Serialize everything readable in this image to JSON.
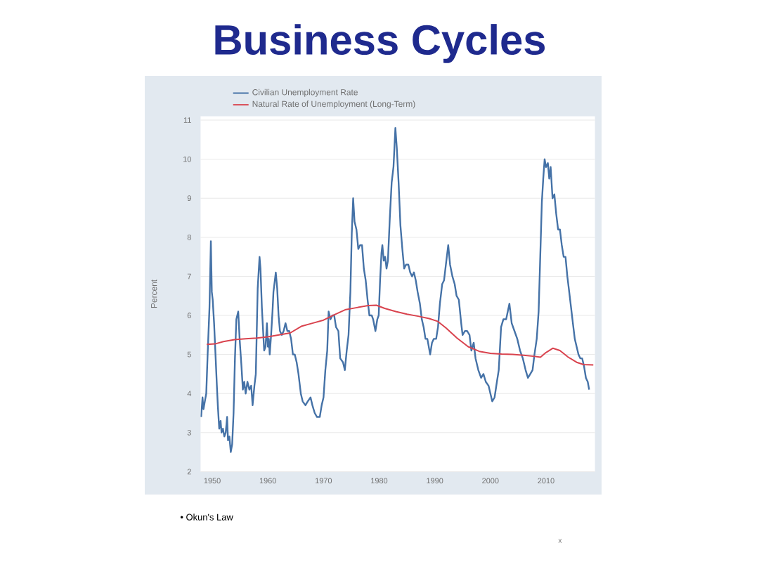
{
  "chart_data": {
    "type": "line",
    "title": "Business Cycles",
    "ylabel": "Percent",
    "annotations": [
      "• Okun's Law",
      "x"
    ],
    "xlim": [
      1947.9,
      2018.8
    ],
    "xticks": [
      1950,
      1960,
      1970,
      1980,
      1990,
      2000,
      2010
    ],
    "ylim": [
      2,
      11.1
    ],
    "yticks": [
      2,
      3,
      4,
      5,
      6,
      7,
      8,
      9,
      10,
      11
    ],
    "grid": "y",
    "legend": "top left",
    "series": [
      {
        "name": "Civilian Unemployment Rate",
        "color": "#4572a7",
        "x": [
          1948.0,
          1948.25,
          1948.42,
          1948.67,
          1948.92,
          1949.17,
          1949.5,
          1949.75,
          1949.92,
          1950.08,
          1950.33,
          1950.58,
          1950.83,
          1951.0,
          1951.25,
          1951.5,
          1951.67,
          1951.92,
          1952.17,
          1952.42,
          1952.67,
          1952.83,
          1953.08,
          1953.33,
          1953.58,
          1953.83,
          1954.08,
          1954.33,
          1954.67,
          1954.92,
          1955.25,
          1955.5,
          1955.75,
          1956.0,
          1956.33,
          1956.67,
          1957.0,
          1957.25,
          1957.58,
          1957.83,
          1958.17,
          1958.5,
          1958.67,
          1958.92,
          1959.33,
          1959.58,
          1959.83,
          1960.0,
          1960.17,
          1960.33,
          1960.58,
          1960.83,
          1961.0,
          1961.42,
          1961.67,
          1961.92,
          1962.17,
          1962.5,
          1962.83,
          1963.17,
          1963.5,
          1963.83,
          1964.17,
          1964.5,
          1964.83,
          1965.17,
          1965.5,
          1965.92,
          1966.25,
          1966.75,
          1967.17,
          1967.67,
          1968.0,
          1968.42,
          1968.83,
          1969.33,
          1969.67,
          1970.0,
          1970.33,
          1970.67,
          1970.92,
          1971.25,
          1971.58,
          1971.92,
          1972.25,
          1972.67,
          1973.0,
          1973.5,
          1973.83,
          1974.17,
          1974.5,
          1974.83,
          1975.08,
          1975.33,
          1975.58,
          1975.92,
          1976.25,
          1976.58,
          1976.92,
          1977.25,
          1977.58,
          1977.92,
          1978.25,
          1978.67,
          1978.92,
          1979.33,
          1979.67,
          1979.92,
          1980.17,
          1980.42,
          1980.58,
          1980.83,
          1981.08,
          1981.33,
          1981.58,
          1981.92,
          1982.25,
          1982.58,
          1982.92,
          1983.17,
          1983.5,
          1983.83,
          1984.17,
          1984.5,
          1984.83,
          1985.25,
          1985.58,
          1985.92,
          1986.25,
          1986.58,
          1986.92,
          1987.33,
          1987.67,
          1988.0,
          1988.33,
          1988.67,
          1989.17,
          1989.5,
          1989.83,
          1990.25,
          1990.58,
          1990.92,
          1991.33,
          1991.67,
          1992.0,
          1992.42,
          1992.75,
          1993.17,
          1993.58,
          1993.92,
          1994.33,
          1994.75,
          1995.0,
          1995.42,
          1995.83,
          1996.25,
          1996.58,
          1997.0,
          1997.33,
          1997.83,
          1998.33,
          1998.75,
          1999.17,
          1999.67,
          2000.0,
          2000.33,
          2000.75,
          2001.17,
          2001.5,
          2001.92,
          2002.33,
          2002.83,
          2003.42,
          2003.83,
          2004.33,
          2004.83,
          2005.33,
          2005.83,
          2006.33,
          2006.75,
          2007.17,
          2007.58,
          2007.92,
          2008.33,
          2008.67,
          2008.92,
          2009.25,
          2009.5,
          2009.75,
          2010.0,
          2010.33,
          2010.58,
          2010.83,
          2011.17,
          2011.5,
          2011.83,
          2012.17,
          2012.5,
          2012.83,
          2013.17,
          2013.5,
          2013.83,
          2014.17,
          2014.5,
          2014.83,
          2015.17,
          2015.5,
          2015.83,
          2016.17,
          2016.5,
          2016.83,
          2017.17,
          2017.5,
          2017.75
        ],
        "values": [
          3.4,
          3.9,
          3.6,
          3.8,
          4.0,
          5.0,
          6.2,
          7.9,
          6.6,
          6.4,
          5.8,
          5.0,
          4.2,
          3.7,
          3.1,
          3.3,
          3.0,
          3.1,
          2.9,
          3.0,
          3.4,
          2.8,
          2.9,
          2.5,
          2.7,
          3.5,
          4.9,
          5.9,
          6.1,
          5.4,
          4.7,
          4.1,
          4.3,
          4.0,
          4.3,
          4.1,
          4.2,
          3.7,
          4.2,
          4.5,
          6.7,
          7.5,
          7.2,
          6.2,
          5.1,
          5.2,
          5.8,
          5.2,
          5.4,
          5.0,
          5.5,
          6.1,
          6.6,
          7.1,
          6.7,
          6.0,
          5.6,
          5.5,
          5.6,
          5.8,
          5.6,
          5.6,
          5.4,
          5.0,
          5.0,
          4.8,
          4.5,
          4.0,
          3.8,
          3.7,
          3.8,
          3.9,
          3.7,
          3.5,
          3.4,
          3.4,
          3.7,
          3.9,
          4.6,
          5.1,
          6.1,
          5.9,
          6.0,
          6.0,
          5.7,
          5.6,
          4.9,
          4.8,
          4.6,
          5.1,
          5.5,
          6.6,
          8.1,
          9.0,
          8.4,
          8.2,
          7.7,
          7.8,
          7.8,
          7.2,
          6.9,
          6.4,
          6.0,
          6.0,
          5.9,
          5.6,
          5.9,
          6.0,
          6.9,
          7.6,
          7.8,
          7.4,
          7.5,
          7.2,
          7.4,
          8.5,
          9.4,
          9.8,
          10.8,
          10.3,
          9.4,
          8.3,
          7.7,
          7.2,
          7.3,
          7.3,
          7.1,
          7.0,
          7.1,
          6.9,
          6.6,
          6.3,
          5.9,
          5.7,
          5.4,
          5.4,
          5.0,
          5.3,
          5.4,
          5.4,
          5.7,
          6.3,
          6.8,
          6.9,
          7.3,
          7.8,
          7.3,
          7.0,
          6.8,
          6.5,
          6.4,
          5.8,
          5.5,
          5.6,
          5.6,
          5.5,
          5.1,
          5.3,
          4.9,
          4.6,
          4.4,
          4.5,
          4.3,
          4.2,
          4.0,
          3.8,
          3.9,
          4.3,
          4.6,
          5.7,
          5.9,
          5.9,
          6.3,
          5.8,
          5.6,
          5.4,
          5.1,
          4.9,
          4.6,
          4.4,
          4.5,
          4.6,
          5.0,
          5.4,
          6.1,
          7.3,
          8.9,
          9.5,
          10.0,
          9.8,
          9.9,
          9.5,
          9.8,
          9.0,
          9.1,
          8.6,
          8.2,
          8.2,
          7.8,
          7.5,
          7.5,
          7.0,
          6.6,
          6.2,
          5.8,
          5.4,
          5.2,
          5.0,
          4.9,
          4.9,
          4.7,
          4.4,
          4.3,
          4.1
        ]
      },
      {
        "name": "Natural Rate of Unemployment (Long-Term)",
        "color": "#d9434e",
        "x": [
          1949.0,
          1950.5,
          1952.0,
          1954.0,
          1956.0,
          1958.0,
          1960.0,
          1962.0,
          1964.0,
          1966.0,
          1968.0,
          1970.0,
          1972.0,
          1974.0,
          1976.0,
          1978.0,
          1979.5,
          1981.0,
          1983.0,
          1985.0,
          1987.0,
          1989.0,
          1990.5,
          1992.0,
          1994.0,
          1996.0,
          1998.0,
          2000.0,
          2002.0,
          2004.0,
          2006.0,
          2008.0,
          2009.0,
          2010.0,
          2011.25,
          2012.5,
          2014.0,
          2015.5,
          2016.75,
          2018.5
        ],
        "values": [
          5.26,
          5.27,
          5.33,
          5.38,
          5.4,
          5.42,
          5.45,
          5.5,
          5.55,
          5.72,
          5.8,
          5.88,
          6.02,
          6.15,
          6.2,
          6.25,
          6.26,
          6.18,
          6.1,
          6.03,
          5.98,
          5.92,
          5.85,
          5.68,
          5.42,
          5.2,
          5.08,
          5.03,
          5.01,
          5.0,
          4.98,
          4.95,
          4.93,
          5.05,
          5.16,
          5.1,
          4.93,
          4.8,
          4.74,
          4.73
        ]
      }
    ]
  }
}
